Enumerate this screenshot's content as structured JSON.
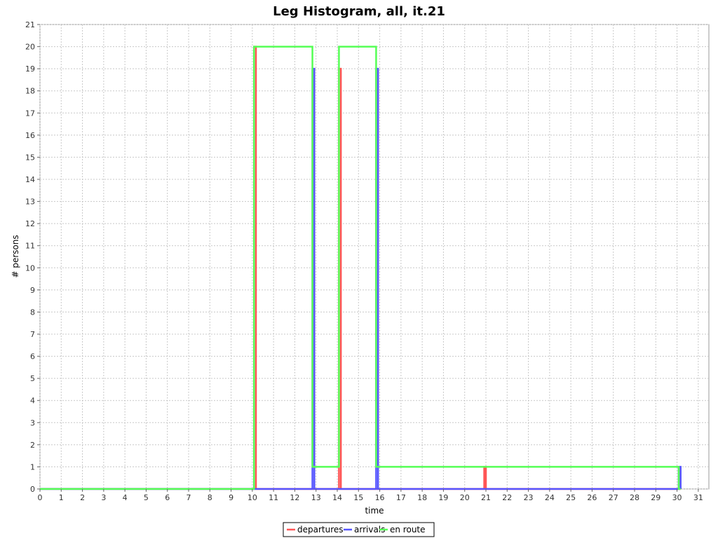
{
  "chart_data": {
    "type": "line",
    "title": "Leg Histogram, all, it.21",
    "xlabel": "time",
    "ylabel": "# persons",
    "xlim": [
      0,
      31.5
    ],
    "ylim": [
      0,
      21
    ],
    "x_ticks": [
      0,
      1,
      2,
      3,
      4,
      5,
      6,
      7,
      8,
      9,
      10,
      11,
      12,
      13,
      14,
      15,
      16,
      17,
      18,
      19,
      20,
      21,
      22,
      23,
      24,
      25,
      26,
      27,
      28,
      29,
      30,
      31
    ],
    "y_ticks": [
      0,
      1,
      2,
      3,
      4,
      5,
      6,
      7,
      8,
      9,
      10,
      11,
      12,
      13,
      14,
      15,
      16,
      17,
      18,
      19,
      20,
      21
    ],
    "grid": true,
    "legend_position": "bottom-center",
    "series": [
      {
        "name": "departures",
        "color": "#ff5555",
        "points": [
          [
            0,
            0
          ],
          [
            10.08,
            0
          ],
          [
            10.08,
            20
          ],
          [
            10.17,
            20
          ],
          [
            10.17,
            0
          ],
          [
            14.08,
            0
          ],
          [
            14.08,
            19
          ],
          [
            14.17,
            19
          ],
          [
            14.17,
            0
          ],
          [
            20.92,
            0
          ],
          [
            20.92,
            1
          ],
          [
            21.0,
            1
          ],
          [
            21.0,
            0
          ],
          [
            30.17,
            0
          ]
        ]
      },
      {
        "name": "arrivals",
        "color": "#5555ff",
        "points": [
          [
            0,
            0
          ],
          [
            12.83,
            0
          ],
          [
            12.83,
            19
          ],
          [
            12.92,
            19
          ],
          [
            12.92,
            0
          ],
          [
            15.83,
            0
          ],
          [
            15.83,
            19
          ],
          [
            15.92,
            19
          ],
          [
            15.92,
            0
          ],
          [
            30.08,
            0
          ],
          [
            30.08,
            1
          ],
          [
            30.17,
            1
          ],
          [
            30.17,
            0
          ]
        ]
      },
      {
        "name": "en route",
        "color": "#55ff55",
        "points": [
          [
            0,
            0
          ],
          [
            10.08,
            0
          ],
          [
            10.08,
            20
          ],
          [
            12.83,
            20
          ],
          [
            12.83,
            1
          ],
          [
            14.08,
            1
          ],
          [
            14.08,
            20
          ],
          [
            15.83,
            20
          ],
          [
            15.83,
            1
          ],
          [
            30.08,
            1
          ],
          [
            30.08,
            0
          ],
          [
            30.17,
            0
          ]
        ]
      }
    ]
  }
}
